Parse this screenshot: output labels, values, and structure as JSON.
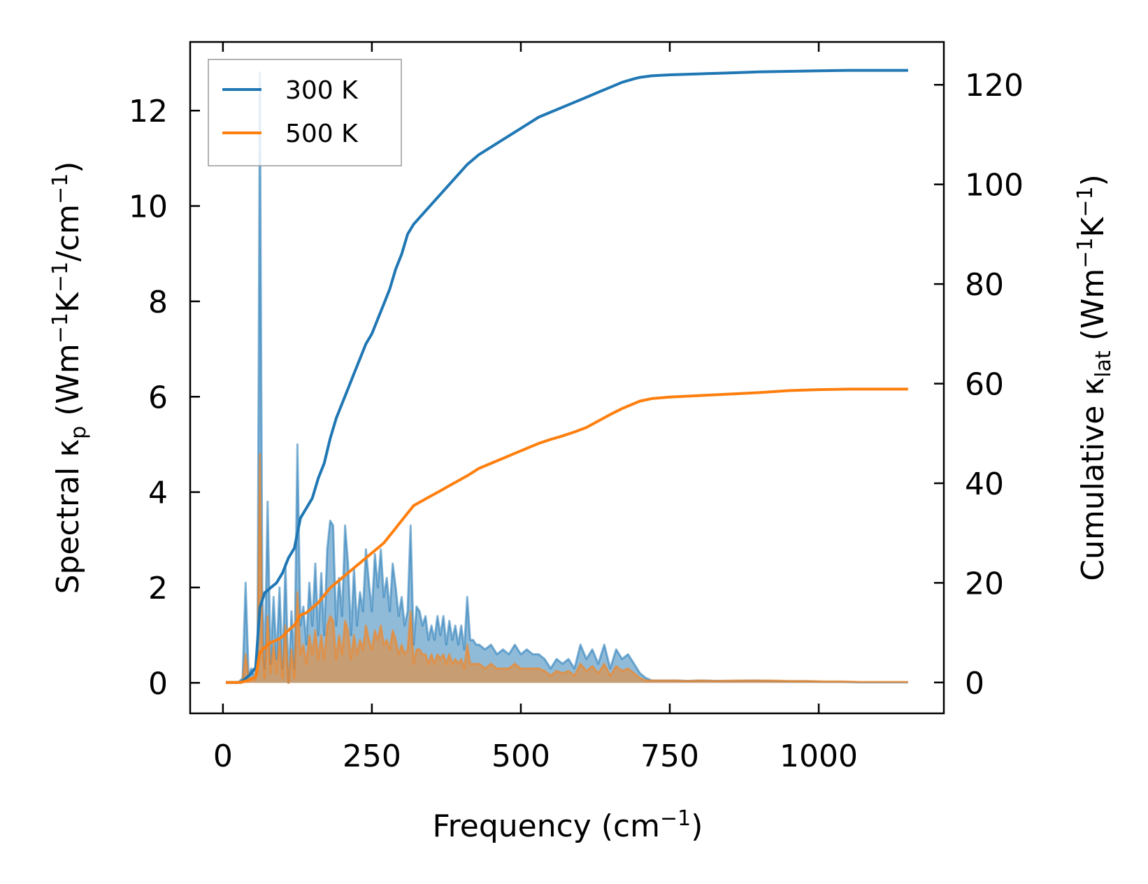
{
  "chart_data": {
    "type": "line",
    "x_axis": {
      "label": "Frequency (cm",
      "label_sup": "−1",
      "label_end": ")",
      "range": [
        -55,
        1210
      ],
      "ticks": [
        0,
        250,
        500,
        750,
        1000
      ],
      "tick_labels": [
        "0",
        "250",
        "500",
        "750",
        "1000"
      ]
    },
    "y_left": {
      "label_parts": [
        {
          "t": "Spectral κ",
          "k": "n"
        },
        {
          "t": "p",
          "k": "sub"
        },
        {
          "t": " (Wm",
          "k": "n"
        },
        {
          "t": "−1",
          "k": "sup"
        },
        {
          "t": "K",
          "k": "n"
        },
        {
          "t": "−1",
          "k": "sup"
        },
        {
          "t": "/cm",
          "k": "n"
        },
        {
          "t": "−1",
          "k": "sup"
        },
        {
          "t": ")",
          "k": "n"
        }
      ],
      "range": [
        -0.64,
        13.44
      ],
      "ticks": [
        0,
        2,
        4,
        6,
        8,
        10,
        12
      ],
      "tick_labels": [
        "0",
        "2",
        "4",
        "6",
        "8",
        "10",
        "12"
      ]
    },
    "y_right": {
      "label_parts": [
        {
          "t": "Cumulative κ",
          "k": "n"
        },
        {
          "t": "lat",
          "k": "sub"
        },
        {
          "t": " (Wm",
          "k": "n"
        },
        {
          "t": "−1",
          "k": "sup"
        },
        {
          "t": "K",
          "k": "n"
        },
        {
          "t": "−1",
          "k": "sup"
        },
        {
          "t": ")",
          "k": "n"
        }
      ],
      "range": [
        -6.2,
        128.6
      ],
      "ticks": [
        0,
        20,
        40,
        60,
        80,
        100,
        120
      ],
      "tick_labels": [
        "0",
        "20",
        "40",
        "60",
        "80",
        "100",
        "120"
      ]
    },
    "legend": {
      "position": "top-left",
      "entries": [
        {
          "label": "300 K",
          "color": "#1f77b4"
        },
        {
          "label": "500 K",
          "color": "#ff7f0e"
        }
      ]
    },
    "cumulative_series": [
      {
        "name": "300 K",
        "color": "#1f77b4",
        "x": [
          5,
          30,
          45,
          55,
          62,
          70,
          80,
          90,
          100,
          110,
          120,
          130,
          140,
          150,
          160,
          170,
          180,
          190,
          200,
          210,
          220,
          230,
          240,
          250,
          260,
          270,
          280,
          290,
          300,
          310,
          320,
          335,
          350,
          365,
          380,
          395,
          410,
          430,
          450,
          470,
          490,
          510,
          530,
          550,
          570,
          590,
          610,
          630,
          650,
          670,
          690,
          700,
          720,
          750,
          800,
          850,
          900,
          950,
          1000,
          1050,
          1100,
          1150
        ],
        "y": [
          0,
          0,
          1.5,
          3,
          15,
          18,
          19,
          20,
          22,
          25,
          27,
          33,
          35,
          37,
          41,
          44,
          49,
          53,
          56,
          59,
          62,
          65,
          68,
          70,
          73,
          76,
          79,
          83,
          86,
          90,
          92,
          94,
          96,
          98,
          100,
          102,
          104,
          106,
          107.5,
          109,
          110.5,
          112,
          113.5,
          114.5,
          115.5,
          116.5,
          117.5,
          118.5,
          119.5,
          120.5,
          121.2,
          121.5,
          121.8,
          122,
          122.2,
          122.4,
          122.6,
          122.7,
          122.8,
          122.9,
          122.9,
          122.9
        ]
      },
      {
        "name": "500 K",
        "color": "#ff7f0e",
        "x": [
          5,
          30,
          45,
          55,
          62,
          70,
          80,
          90,
          100,
          110,
          120,
          130,
          140,
          150,
          160,
          170,
          180,
          190,
          200,
          210,
          220,
          230,
          240,
          250,
          260,
          270,
          280,
          290,
          300,
          310,
          320,
          335,
          350,
          365,
          380,
          395,
          410,
          430,
          450,
          470,
          490,
          510,
          530,
          550,
          570,
          590,
          610,
          630,
          650,
          670,
          690,
          700,
          720,
          750,
          800,
          850,
          900,
          950,
          1000,
          1050,
          1100,
          1150
        ],
        "y": [
          0,
          0,
          0.5,
          1.2,
          6,
          7,
          8,
          8.5,
          9.2,
          10.5,
          11.5,
          13.5,
          14,
          15,
          16,
          17.5,
          19,
          20,
          21,
          22,
          23,
          24,
          25,
          26,
          27,
          28,
          29.5,
          31,
          32.5,
          34,
          35.5,
          36.5,
          37.5,
          38.5,
          39.5,
          40.5,
          41.5,
          43,
          44,
          45,
          46,
          47,
          48,
          48.8,
          49.5,
          50.3,
          51.2,
          52.5,
          53.8,
          55,
          56,
          56.5,
          57,
          57.3,
          57.6,
          57.9,
          58.2,
          58.6,
          58.8,
          58.9,
          58.9,
          58.9
        ]
      }
    ],
    "spectral_series": [
      {
        "name": "300 K",
        "color": "#1f77b4",
        "x": [
          5,
          25,
          33,
          38,
          43,
          48,
          53,
          58,
          62,
          66,
          70,
          75,
          80,
          85,
          90,
          95,
          100,
          105,
          110,
          115,
          120,
          125,
          130,
          135,
          140,
          145,
          150,
          155,
          160,
          165,
          170,
          175,
          180,
          185,
          190,
          195,
          200,
          205,
          210,
          215,
          220,
          225,
          230,
          235,
          240,
          245,
          250,
          255,
          260,
          265,
          270,
          275,
          280,
          285,
          290,
          295,
          300,
          305,
          310,
          315,
          320,
          325,
          330,
          335,
          340,
          345,
          350,
          355,
          360,
          365,
          370,
          375,
          380,
          385,
          390,
          395,
          400,
          405,
          410,
          415,
          420,
          425,
          430,
          440,
          450,
          460,
          470,
          480,
          490,
          500,
          510,
          520,
          530,
          540,
          550,
          560,
          570,
          580,
          590,
          600,
          610,
          620,
          630,
          640,
          650,
          660,
          670,
          680,
          690,
          700,
          710,
          720,
          740,
          760,
          780,
          800,
          830,
          860,
          890,
          920,
          950,
          980,
          1010,
          1040,
          1070,
          1100,
          1130,
          1150
        ],
        "y": [
          0,
          0,
          0.1,
          2.1,
          0.2,
          0.3,
          0.1,
          0.5,
          12.8,
          2.0,
          0.3,
          3.8,
          0.4,
          1.8,
          0.5,
          2.0,
          0.3,
          2.5,
          0.0,
          1.5,
          0.3,
          5.0,
          1.2,
          1.6,
          0.8,
          2.1,
          1.2,
          2.5,
          1.0,
          2.3,
          1.0,
          2.8,
          3.4,
          3.3,
          1.2,
          2.2,
          1.4,
          3.3,
          2.5,
          1.0,
          2.4,
          1.2,
          1.9,
          1.5,
          2.8,
          2.1,
          1.5,
          2.7,
          2.0,
          2.8,
          1.8,
          2.2,
          1.5,
          2.5,
          2.0,
          1.4,
          1.8,
          1.2,
          1.5,
          3.3,
          0.8,
          1.6,
          1.5,
          1.2,
          1.4,
          0.9,
          1.2,
          0.9,
          1.4,
          1.0,
          1.4,
          0.8,
          1.3,
          0.9,
          1.2,
          0.8,
          1.2,
          0.7,
          1.8,
          0.9,
          0.9,
          0.8,
          0.8,
          0.7,
          0.8,
          0.6,
          0.7,
          0.6,
          0.8,
          0.6,
          0.7,
          0.6,
          0.6,
          0.5,
          0.3,
          0.5,
          0.4,
          0.5,
          0.3,
          0.8,
          0.5,
          0.7,
          0.4,
          0.8,
          0.3,
          0.7,
          0.5,
          0.6,
          0.4,
          0.2,
          0.1,
          0.05,
          0.05,
          0.05,
          0.04,
          0.05,
          0.04,
          0.04,
          0.05,
          0.04,
          0.03,
          0.03,
          0.02,
          0.02,
          0.01,
          0.01,
          0.01,
          0.01
        ]
      },
      {
        "name": "500 K",
        "color": "#ff7f0e",
        "x": [
          5,
          25,
          33,
          38,
          43,
          48,
          53,
          58,
          62,
          66,
          70,
          75,
          80,
          85,
          90,
          95,
          100,
          105,
          110,
          115,
          120,
          125,
          130,
          135,
          140,
          145,
          150,
          155,
          160,
          165,
          170,
          175,
          180,
          185,
          190,
          195,
          200,
          205,
          210,
          215,
          220,
          225,
          230,
          235,
          240,
          245,
          250,
          255,
          260,
          265,
          270,
          275,
          280,
          285,
          290,
          295,
          300,
          305,
          310,
          315,
          320,
          325,
          330,
          335,
          340,
          345,
          350,
          355,
          360,
          365,
          370,
          375,
          380,
          385,
          390,
          395,
          400,
          405,
          410,
          415,
          420,
          425,
          430,
          440,
          450,
          460,
          470,
          480,
          490,
          500,
          510,
          520,
          530,
          540,
          550,
          560,
          570,
          580,
          590,
          600,
          610,
          620,
          630,
          640,
          650,
          660,
          670,
          680,
          690,
          700,
          710,
          720,
          740,
          760,
          780,
          800,
          830,
          860,
          890,
          920,
          950,
          980,
          1010,
          1040,
          1070,
          1100,
          1130,
          1150
        ],
        "y": [
          0,
          0,
          0.05,
          0.6,
          0.1,
          0.1,
          0.05,
          0.2,
          4.8,
          0.8,
          0.1,
          1.4,
          0.2,
          0.8,
          0.2,
          0.9,
          0.1,
          1.2,
          0.0,
          0.7,
          0.1,
          1.9,
          0.6,
          0.8,
          0.4,
          1.0,
          0.6,
          1.1,
          0.5,
          1.0,
          0.5,
          1.2,
          1.4,
          1.3,
          0.5,
          1.0,
          0.6,
          1.3,
          1.1,
          0.5,
          1.0,
          0.6,
          0.9,
          0.7,
          1.2,
          0.9,
          0.7,
          1.1,
          0.9,
          1.2,
          0.8,
          0.9,
          0.7,
          1.1,
          0.9,
          0.6,
          0.8,
          0.6,
          0.7,
          1.5,
          0.4,
          0.7,
          0.7,
          0.6,
          0.6,
          0.4,
          0.6,
          0.4,
          0.6,
          0.5,
          0.6,
          0.4,
          0.6,
          0.4,
          0.5,
          0.4,
          0.5,
          0.3,
          0.8,
          0.4,
          0.4,
          0.4,
          0.4,
          0.3,
          0.4,
          0.3,
          0.3,
          0.3,
          0.4,
          0.3,
          0.3,
          0.3,
          0.3,
          0.25,
          0.15,
          0.25,
          0.2,
          0.25,
          0.15,
          0.4,
          0.25,
          0.35,
          0.2,
          0.4,
          0.15,
          0.35,
          0.25,
          0.3,
          0.2,
          0.1,
          0.05,
          0.05,
          0.05,
          0.05,
          0.04,
          0.05,
          0.04,
          0.05,
          0.05,
          0.05,
          0.04,
          0.04,
          0.03,
          0.03,
          0.02,
          0.02,
          0.02,
          0.02
        ]
      }
    ]
  }
}
